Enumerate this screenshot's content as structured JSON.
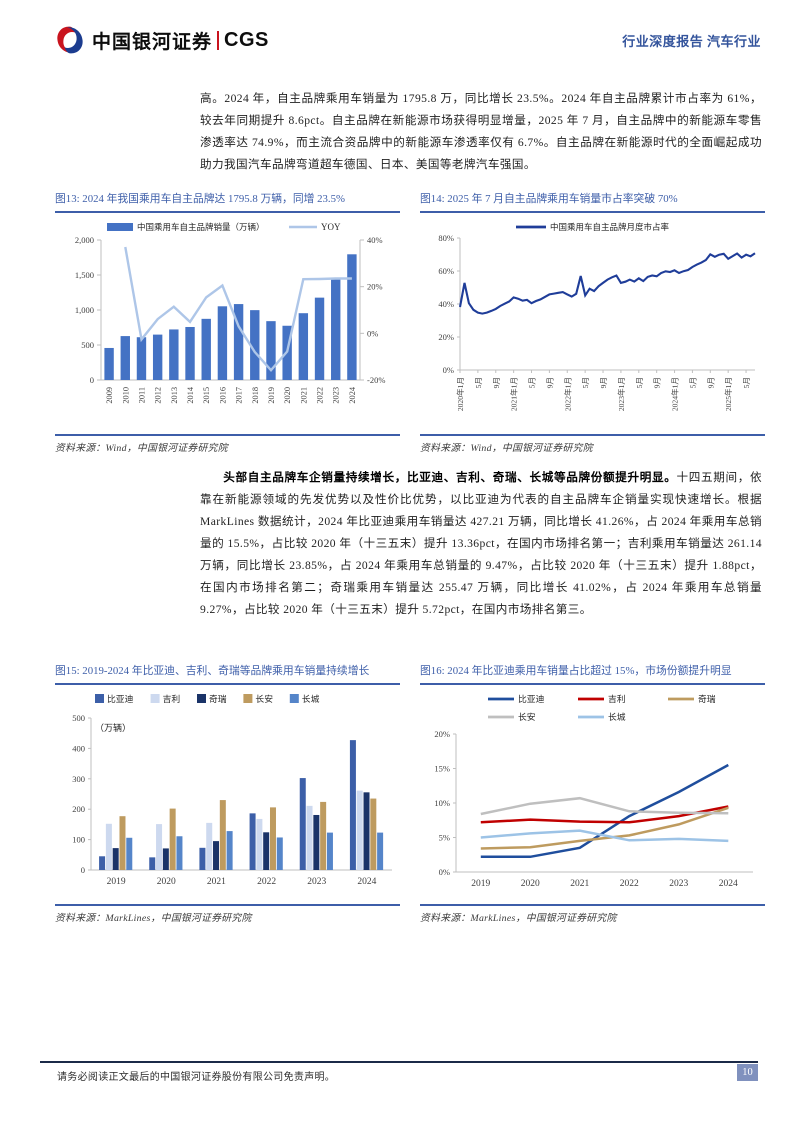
{
  "page": {
    "header": {
      "brand_cn": "中国银河证券",
      "brand_en": "CGS",
      "report_type": "行业深度报告 汽车行业"
    },
    "para1": "高。2024 年，自主品牌乘用车销量为 1795.8 万，同比增长 23.5%。2024 年自主品牌累计市占率为 61%，较去年同期提升 8.6pct。自主品牌在新能源市场获得明显增量，2025 年 7 月，自主品牌中的新能源车零售渗透率达 74.9%，而主流合资品牌中的新能源车渗透率仅有 6.7%。自主品牌在新能源时代的全面崛起成功助力我国汽车品牌弯道超车德国、日本、美国等老牌汽车强国。",
    "para2_bold": "头部自主品牌车企销量持续增长，比亚迪、吉利、奇瑞、长城等品牌份额提升明显。",
    "para2_rest": "十四五期间，依靠在新能源领域的先发优势以及性价比优势，以比亚迪为代表的自主品牌车企销量实现快速增长。根据 MarkLines 数据统计，2024 年比亚迪乘用车销量达 427.21 万辆，同比增长 41.26%，占 2024 年乘用车总销量的 15.5%，占比较 2020 年（十三五末）提升 13.36pct，在国内市场排名第一；吉利乘用车销量达 261.14 万辆，同比增长 23.85%，占 2024 年乘用车总销量的 9.47%，占比较 2020 年（十三五末）提升 1.88pct，在国内市场排名第二；奇瑞乘用车销量达 255.47 万辆，同比增长 41.02%，占 2024 年乘用车总销量 9.27%，占比较 2020 年（十三五末）提升 5.72pct，在国内市场排名第三。",
    "footer": {
      "disclaimer": "请务必阅读正文最后的中国银河证券股份有限公司免责声明。",
      "page_number": "10"
    }
  },
  "colors": {
    "accent_blue": "#3D5EA9",
    "header_blue": "#34549C",
    "logo_red": "#C9141E",
    "logo_blue": "#1B3C8F",
    "footer_bar": "#1B2A48",
    "page_box": "#8091BE"
  },
  "chart_data": [
    {
      "id": "fig13",
      "type": "bar+line",
      "figure_title": "图13: 2024 年我国乘用车自主品牌达 1795.8 万辆，同增 23.5%",
      "source": "资料来源：Wind，中国银河证券研究院",
      "categories": [
        "2009",
        "2010",
        "2011",
        "2012",
        "2013",
        "2014",
        "2015",
        "2016",
        "2017",
        "2018",
        "2019",
        "2020",
        "2021",
        "2022",
        "2023",
        "2024"
      ],
      "series": [
        {
          "name": "中国乘用车自主品牌销量（万辆）",
          "type": "bar",
          "axis": "left",
          "color": "#4472C4",
          "values": [
            457.7,
            627.3,
            611.2,
            648.5,
            722.2,
            757.3,
            873.8,
            1052.9,
            1084.7,
            998.0,
            840.7,
            774.9,
            954.3,
            1176.6,
            1453.0,
            1795.8
          ]
        },
        {
          "name": "YOY",
          "type": "line",
          "axis": "right",
          "color": "#AEC6E8",
          "values": [
            null,
            37.0,
            -2.6,
            6.1,
            11.4,
            4.9,
            15.4,
            20.5,
            3.0,
            -8.0,
            -15.8,
            -7.8,
            23.2,
            23.3,
            23.5,
            23.5
          ]
        }
      ],
      "left_axis": {
        "min": 0,
        "max": 2000,
        "ticks": [
          0,
          500,
          1000,
          1500,
          2000
        ]
      },
      "right_axis": {
        "min": -20,
        "max": 40,
        "ticks": [
          -20,
          0,
          20,
          40
        ],
        "suffix": "%"
      },
      "legend_position": "top",
      "grid": false
    },
    {
      "id": "fig14",
      "type": "line",
      "figure_title": "图14: 2025 年 7 月自主品牌乘用车销量市占率突破 70%",
      "source": "资料来源：Wind，中国银河证券研究院",
      "series": [
        {
          "name": "中国乘用车自主品牌月度市占率",
          "color": "#1F3D99",
          "values": [
            38.2,
            52.8,
            40.5,
            36.5,
            34.8,
            34.2,
            34.8,
            35.8,
            37.0,
            38.8,
            40.2,
            41.5,
            44.0,
            43.2,
            42.0,
            42.5,
            40.5,
            41.8,
            42.8,
            44.3,
            45.8,
            46.3,
            46.8,
            47.2,
            45.8,
            44.5,
            46.2,
            57.0,
            45.2,
            49.3,
            47.8,
            50.8,
            52.8,
            54.8,
            56.2,
            57.3,
            52.8,
            53.5,
            54.8,
            53.6,
            55.6,
            53.9,
            56.4,
            57.3,
            56.8,
            58.8,
            59.8,
            59.4,
            60.4,
            58.8,
            59.9,
            60.6,
            62.4,
            63.9,
            65.1,
            66.6,
            70.1,
            68.6,
            69.9,
            70.4,
            67.4,
            69.0,
            70.6,
            68.1,
            69.9,
            68.9,
            70.8
          ]
        }
      ],
      "x_tick_labels": [
        "2020年1月",
        "5月",
        "9月",
        "2021年1月",
        "5月",
        "9月",
        "2022年1月",
        "5月",
        "9月",
        "2023年1月",
        "5月",
        "9月",
        "2024年1月",
        "5月",
        "9月",
        "2025年1月",
        "5月"
      ],
      "x_tick_interval": 4,
      "y_axis": {
        "min": 0,
        "max": 80,
        "ticks": [
          0,
          20,
          40,
          60,
          80
        ],
        "suffix": "%"
      },
      "legend_position": "top",
      "grid": false
    },
    {
      "id": "fig15",
      "type": "bar",
      "figure_title": "图15: 2019-2024 年比亚迪、吉利、奇瑞等品牌乘用车销量持续增长",
      "source": "资料来源：MarkLines，中国银河证券研究院",
      "unit_label": "（万辆）",
      "categories": [
        "2019",
        "2020",
        "2021",
        "2022",
        "2023",
        "2024"
      ],
      "series": [
        {
          "name": "比亚迪",
          "color": "#3C5FA8",
          "values": [
            45.1,
            41.6,
            73.0,
            186.3,
            302.4,
            427.2
          ]
        },
        {
          "name": "吉利",
          "color": "#CDD9EF",
          "values": [
            152,
            151,
            155,
            168,
            211,
            261.1
          ]
        },
        {
          "name": "奇瑞",
          "color": "#1A3368",
          "values": [
            72,
            71,
            95,
            124,
            181,
            255.5
          ]
        },
        {
          "name": "长安",
          "color": "#BE9B5F",
          "values": [
            177,
            202,
            230,
            206,
            224,
            235
          ]
        },
        {
          "name": "长城",
          "color": "#5585C9",
          "values": [
            106,
            111,
            128,
            107,
            123,
            123
          ]
        }
      ],
      "y_axis": {
        "min": 0,
        "max": 500,
        "ticks": [
          0,
          100,
          200,
          300,
          400,
          500
        ]
      },
      "legend_position": "top",
      "grid": false
    },
    {
      "id": "fig16",
      "type": "line-multi",
      "figure_title": "图16: 2024 年比亚迪乘用车销量占比超过 15%，市场份额提升明显",
      "source": "资料来源：MarkLines，中国银河证券研究院",
      "categories": [
        "2019",
        "2020",
        "2021",
        "2022",
        "2023",
        "2024"
      ],
      "series": [
        {
          "name": "比亚迪",
          "color": "#1F4E9D",
          "values": [
            2.2,
            2.2,
            3.5,
            8.1,
            11.6,
            15.5
          ]
        },
        {
          "name": "吉利",
          "color": "#C00000",
          "values": [
            7.2,
            7.6,
            7.3,
            7.2,
            8.1,
            9.5
          ]
        },
        {
          "name": "奇瑞",
          "color": "#BE9B5F",
          "values": [
            3.4,
            3.6,
            4.5,
            5.3,
            6.9,
            9.3
          ]
        },
        {
          "name": "长安",
          "color": "#BFBFBF",
          "values": [
            8.4,
            9.9,
            10.7,
            8.8,
            8.6,
            8.5
          ]
        },
        {
          "name": "长城",
          "color": "#9DC3E6",
          "values": [
            5.0,
            5.6,
            6.0,
            4.6,
            4.8,
            4.5
          ]
        }
      ],
      "y_axis": {
        "min": 0,
        "max": 20,
        "ticks": [
          0,
          5,
          10,
          15,
          20
        ],
        "suffix": "%"
      },
      "legend_position": "top",
      "grid": false
    }
  ]
}
